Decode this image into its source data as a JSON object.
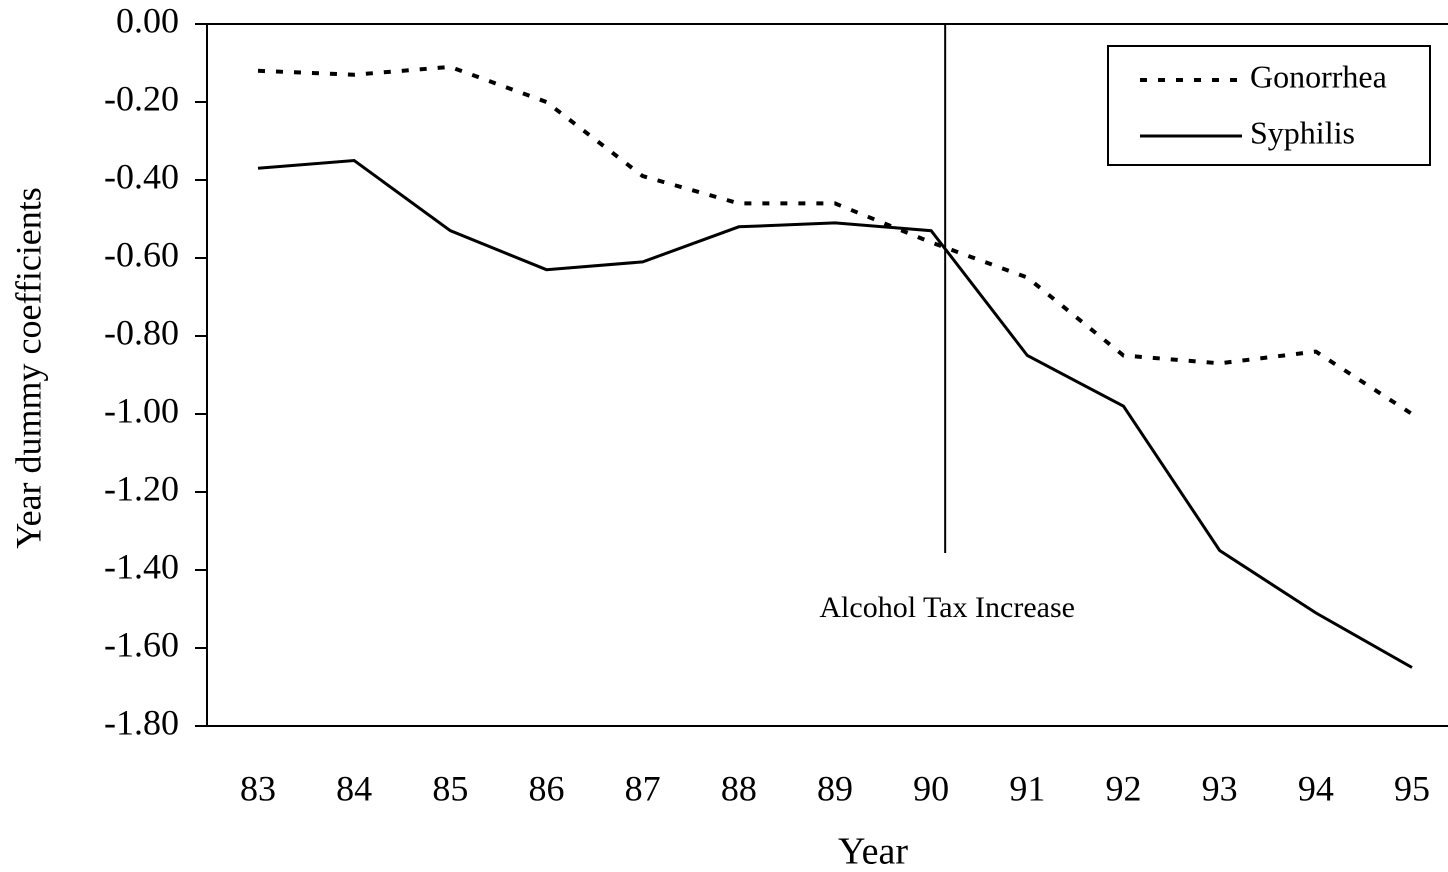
{
  "chart_data": {
    "type": "line",
    "xlabel": "Year",
    "ylabel": "Year dummy coefficients",
    "categories": [
      "83",
      "84",
      "85",
      "86",
      "87",
      "88",
      "89",
      "90",
      "91",
      "92",
      "93",
      "94",
      "95"
    ],
    "series": [
      {
        "name": "Gonorrhea",
        "color": "#000000",
        "dash": "dotted",
        "values": [
          -0.12,
          -0.13,
          -0.11,
          -0.2,
          -0.39,
          -0.46,
          -0.46,
          -0.56,
          -0.65,
          -0.85,
          -0.87,
          -0.84,
          -1.0
        ]
      },
      {
        "name": "Syphilis",
        "color": "#000000",
        "dash": "solid",
        "values": [
          -0.37,
          -0.35,
          -0.53,
          -0.63,
          -0.61,
          -0.52,
          -0.51,
          -0.53,
          -0.85,
          -0.98,
          -1.35,
          -1.51,
          -1.65
        ]
      }
    ],
    "ylim": [
      -1.8,
      0
    ],
    "yticks": [
      {
        "value": 0,
        "label": "0.00"
      },
      {
        "value": -0.2,
        "label": "-0.20"
      },
      {
        "value": -0.4,
        "label": "-0.40"
      },
      {
        "value": -0.6,
        "label": "-0.60"
      },
      {
        "value": -0.8,
        "label": "-0.80"
      },
      {
        "value": -1.0,
        "label": "-1.00"
      },
      {
        "value": -1.2,
        "label": "-1.20"
      },
      {
        "value": -1.4,
        "label": "-1.40"
      },
      {
        "value": -1.6,
        "label": "-1.60"
      },
      {
        "value": -1.8,
        "label": "-1.80"
      }
    ],
    "annotation": "Alcohol Tax Increase",
    "legend": "upper right",
    "grid": false
  }
}
